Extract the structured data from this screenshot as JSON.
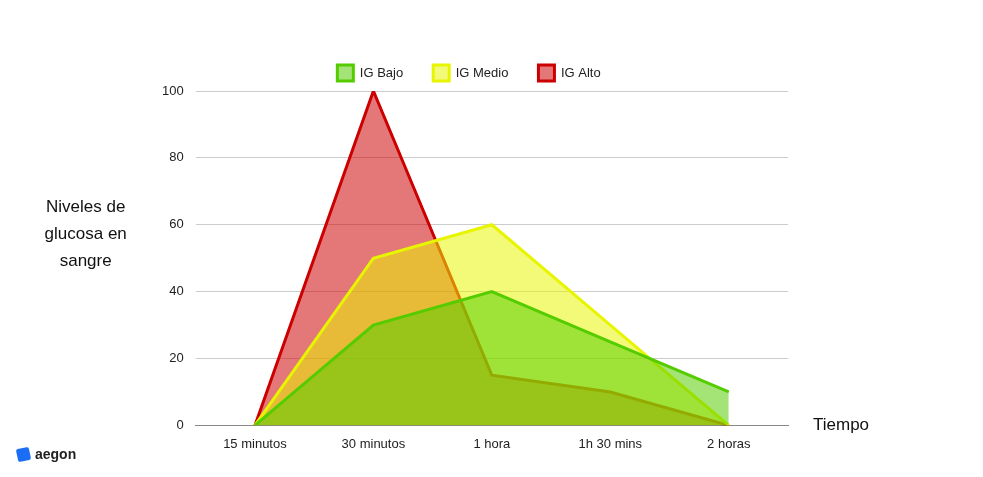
{
  "chart_data": {
    "type": "area",
    "x_label": "Tiempo",
    "y_label": "Niveles de glucosa en sangre",
    "annotations": [
      "aegon"
    ],
    "categories": [
      "15 minutos",
      "30 minutos",
      "1 hora",
      "1h 30 mins",
      "2 horas"
    ],
    "series": [
      {
        "name": "IG Alto",
        "color": "#cc0000",
        "values": [
          0,
          100,
          15,
          10,
          0
        ]
      },
      {
        "name": "IG Medio",
        "color": "#e8f500",
        "values": [
          0,
          50,
          60,
          30,
          0
        ]
      },
      {
        "name": "IG Bajo",
        "color": "#55cc00",
        "values": [
          0,
          30,
          40,
          25,
          10
        ]
      }
    ],
    "ylim": [
      0,
      100
    ],
    "yticks": [
      0,
      20,
      40,
      60,
      80,
      100
    ],
    "grid": true,
    "legend": "top"
  }
}
